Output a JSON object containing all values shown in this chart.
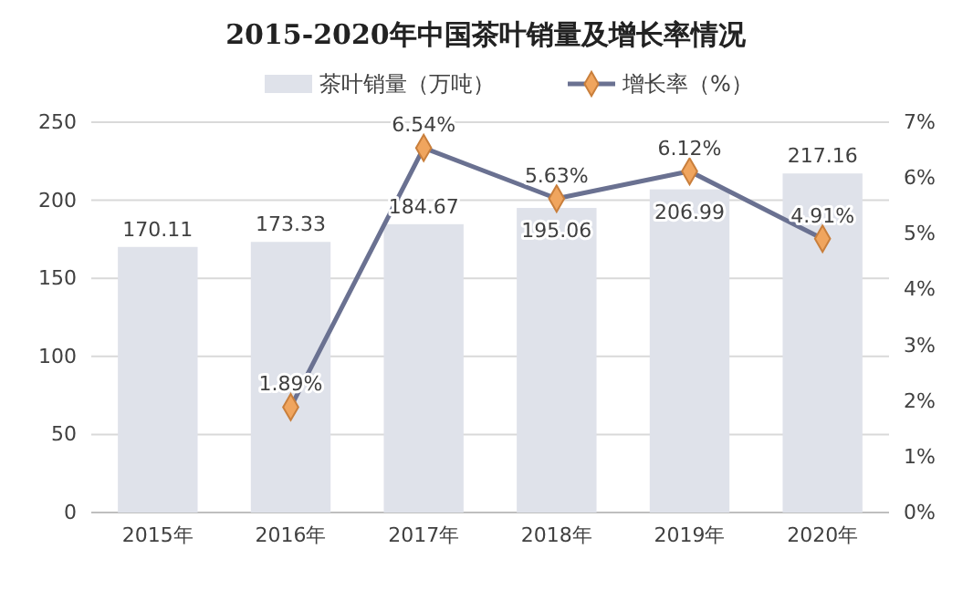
{
  "chart_data": {
    "type": "bar",
    "title": "2015-2020年中国茶叶销量及增长率情况",
    "categories": [
      "2015年",
      "2016年",
      "2017年",
      "2018年",
      "2019年",
      "2020年"
    ],
    "series": [
      {
        "name": "茶叶销量（万吨）",
        "color": "#dfe2ea",
        "values": [
          170.11,
          173.33,
          184.67,
          195.06,
          206.99,
          217.16
        ],
        "value_labels": [
          "170.11",
          "173.33",
          "184.67",
          "195.06",
          "206.99",
          "217.16"
        ]
      },
      {
        "name": "增长率（%）",
        "type": "line",
        "axis": "y2",
        "color": "#6a7191",
        "marker": "diamond",
        "values": [
          null,
          1.89,
          6.54,
          5.63,
          6.12,
          4.91
        ],
        "value_labels": [
          null,
          "1.89%",
          "6.54%",
          "5.63%",
          "6.12%",
          "4.91%"
        ]
      }
    ],
    "ylim": [
      0,
      250
    ],
    "yticks": [
      0,
      50,
      100,
      150,
      200,
      250
    ],
    "y2lim": [
      0,
      7
    ],
    "y2ticks": [
      {
        "value": 0,
        "label": "0%"
      },
      {
        "value": 1,
        "label": "1%"
      },
      {
        "value": 2,
        "label": "2%"
      },
      {
        "value": 3,
        "label": "3%"
      },
      {
        "value": 4,
        "label": "4%"
      },
      {
        "value": 5,
        "label": "5%"
      },
      {
        "value": 6,
        "label": "6%"
      },
      {
        "value": 7,
        "label": "7%"
      }
    ],
    "grid": "y",
    "legend": "top"
  }
}
